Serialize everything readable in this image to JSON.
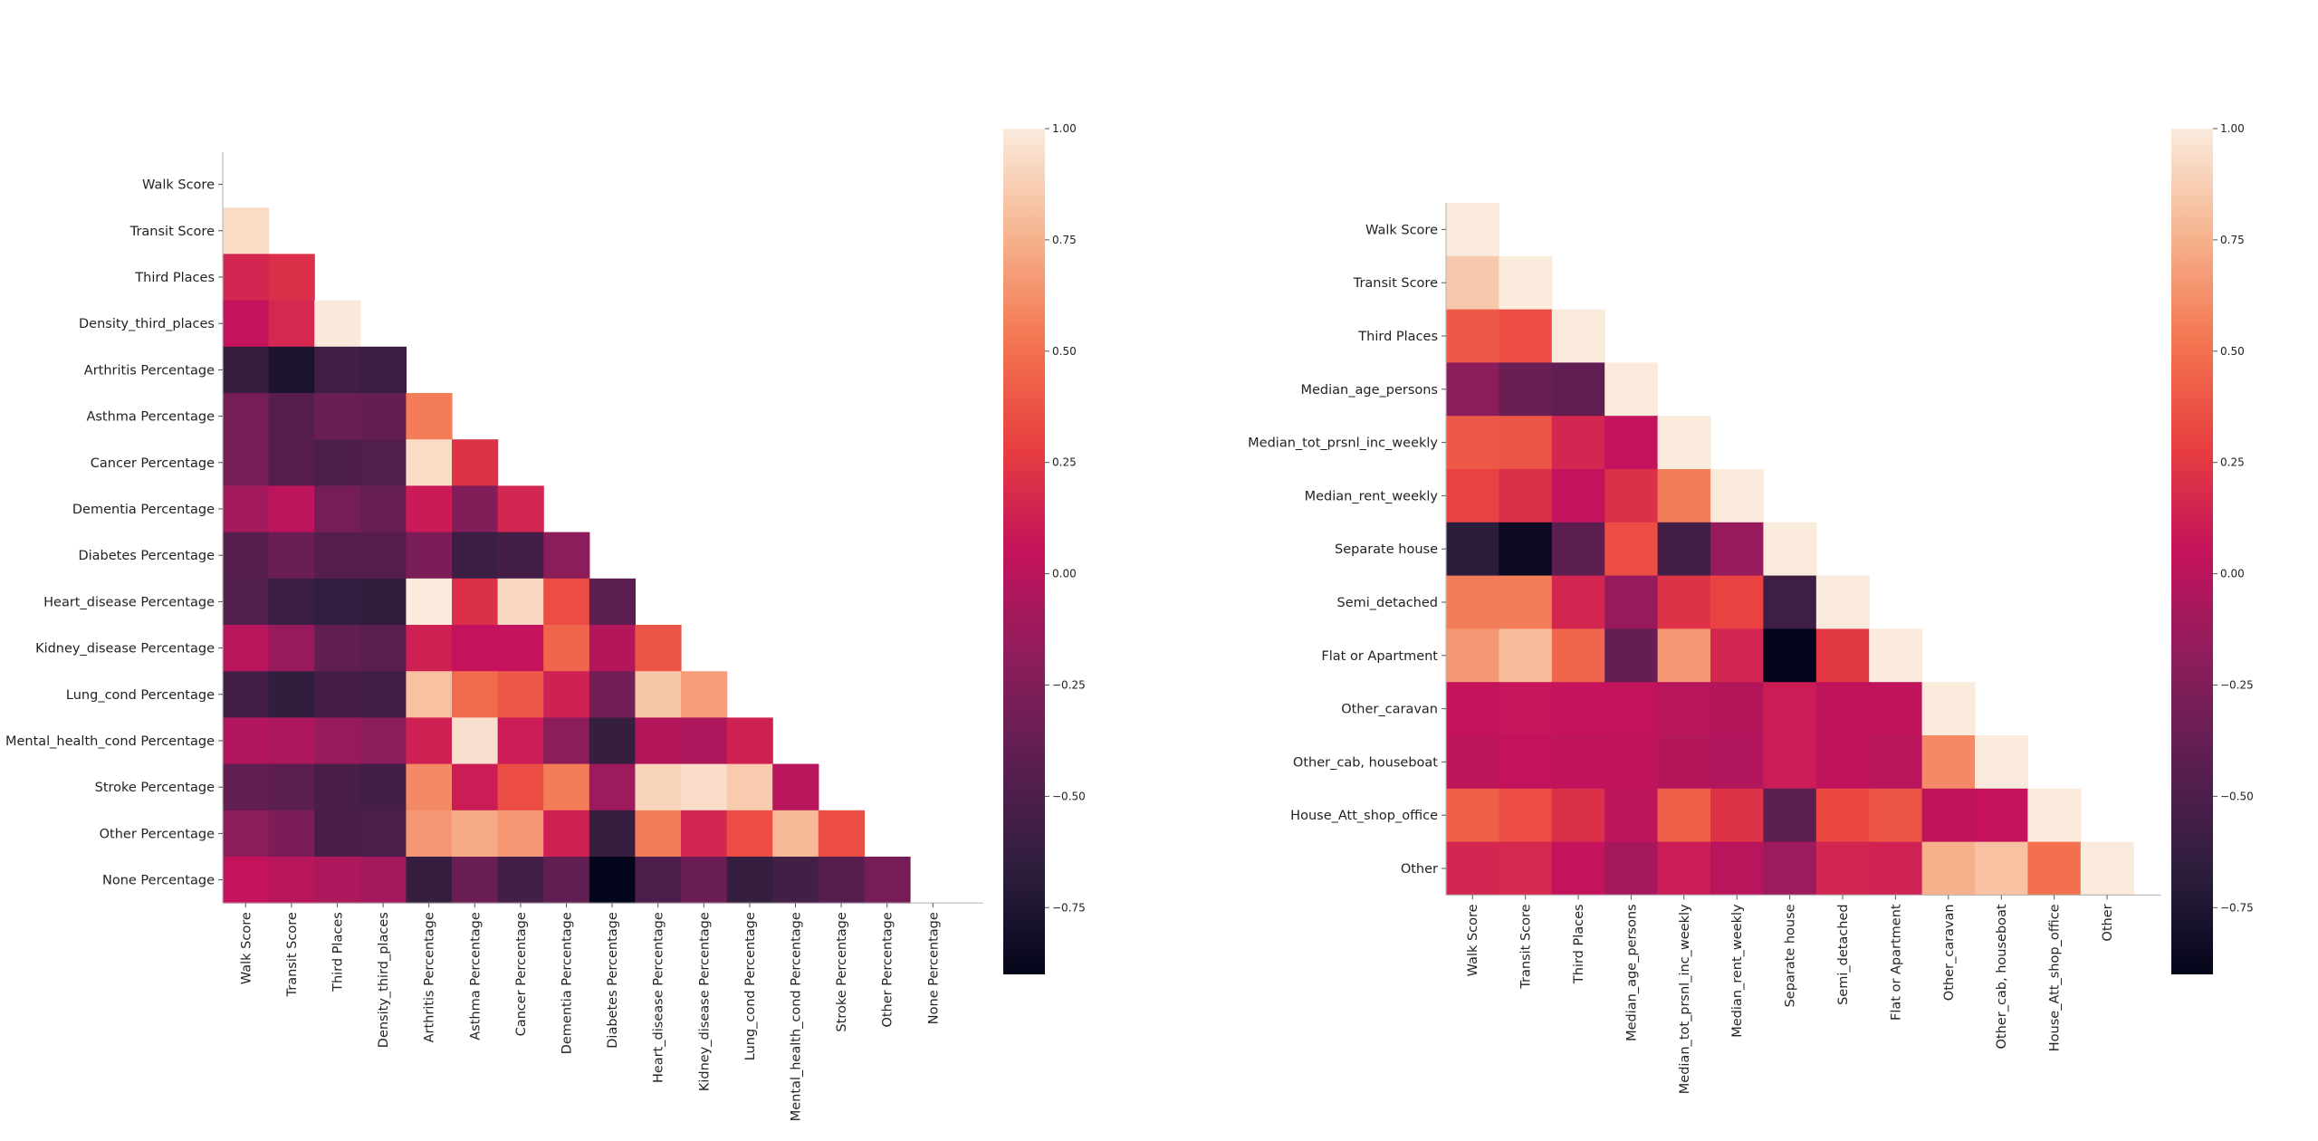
{
  "chart_data": [
    {
      "type": "heatmap",
      "labels": [
        "Walk Score",
        "Transit Score",
        "Third Places",
        "Density_third_places",
        "Arthritis Percentage",
        "Asthma Percentage",
        "Cancer Percentage",
        "Dementia Percentage",
        "Diabetes Percentage",
        "Heart_disease Percentage",
        "Kidney_disease Percentage",
        "Lung_cond Percentage",
        "Mental_health_cond Percentage",
        "Stroke Percentage",
        "Other Percentage",
        "None Percentage"
      ],
      "mask": "upper-triangle",
      "values": [
        [],
        [
          0.93
        ],
        [
          0.15,
          0.2
        ],
        [
          0.05,
          0.16,
          0.99
        ],
        [
          -0.62,
          -0.76,
          -0.57,
          -0.6
        ],
        [
          -0.3,
          -0.45,
          -0.35,
          -0.38,
          0.55
        ],
        [
          -0.3,
          -0.45,
          -0.5,
          -0.48,
          0.93,
          0.22
        ],
        [
          -0.1,
          0.02,
          -0.3,
          -0.37,
          0.09,
          -0.25,
          0.15
        ],
        [
          -0.45,
          -0.35,
          -0.45,
          -0.45,
          -0.28,
          -0.6,
          -0.55,
          -0.2
        ],
        [
          -0.48,
          -0.6,
          -0.64,
          -0.65,
          1.0,
          0.2,
          0.92,
          0.35,
          -0.42
        ],
        [
          0.0,
          -0.15,
          -0.4,
          -0.44,
          0.12,
          0.05,
          0.05,
          0.45,
          -0.02,
          0.38
        ],
        [
          -0.55,
          -0.65,
          -0.54,
          -0.55,
          0.82,
          0.48,
          0.4,
          0.12,
          -0.32,
          0.84,
          0.68
        ],
        [
          -0.03,
          -0.05,
          -0.15,
          -0.2,
          0.12,
          0.95,
          0.1,
          -0.2,
          -0.62,
          -0.02,
          -0.05,
          0.12
        ],
        [
          -0.4,
          -0.42,
          -0.52,
          -0.55,
          0.6,
          0.1,
          0.35,
          0.55,
          -0.12,
          0.9,
          0.94,
          0.86,
          0.0
        ],
        [
          -0.2,
          -0.28,
          -0.52,
          -0.5,
          0.65,
          0.72,
          0.65,
          0.12,
          -0.62,
          0.55,
          0.15,
          0.35,
          0.78,
          0.35
        ],
        [
          0.05,
          0.0,
          -0.05,
          -0.1,
          -0.62,
          -0.35,
          -0.55,
          -0.4,
          -0.95,
          -0.5,
          -0.35,
          -0.62,
          -0.55,
          -0.45,
          -0.3
        ]
      ],
      "colorbar": {
        "range": [
          -0.9,
          1.0
        ],
        "ticks": [
          "1.00",
          "0.75",
          "0.50",
          "0.25",
          "0.00",
          "−0.25",
          "−0.50",
          "−0.75"
        ],
        "tick_values": [
          1.0,
          0.75,
          0.5,
          0.25,
          0.0,
          -0.25,
          -0.5,
          -0.75
        ]
      },
      "colormap": "rocket"
    },
    {
      "type": "heatmap",
      "labels": [
        "Walk Score",
        "Transit Score",
        "Third Places",
        "Median_age_persons",
        "Median_tot_prsnl_inc_weekly",
        "Median_rent_weekly",
        "Separate house",
        "Semi_detached",
        "Flat or Apartment",
        "Other_caravan",
        "Other_cab, houseboat",
        "House_Att_shop_office",
        "Other"
      ],
      "mask": "upper-triangle-diagonal-shown",
      "values": [
        [
          1.0
        ],
        [
          0.85,
          1.0
        ],
        [
          0.4,
          0.35,
          1.0
        ],
        [
          -0.2,
          -0.35,
          -0.4,
          1.0
        ],
        [
          0.4,
          0.38,
          0.15,
          0.05,
          1.0
        ],
        [
          0.3,
          0.2,
          0.05,
          0.2,
          0.55,
          1.0
        ],
        [
          -0.68,
          -0.85,
          -0.42,
          0.35,
          -0.55,
          -0.15,
          1.0
        ],
        [
          0.55,
          0.55,
          0.15,
          -0.15,
          0.22,
          0.3,
          -0.58,
          1.0
        ],
        [
          0.65,
          0.8,
          0.45,
          -0.38,
          0.65,
          0.15,
          -0.95,
          0.25,
          1.0
        ],
        [
          0.05,
          0.06,
          0.05,
          0.04,
          0.0,
          -0.02,
          0.1,
          0.03,
          0.03,
          1.0
        ],
        [
          0.02,
          0.04,
          0.03,
          0.03,
          -0.02,
          -0.03,
          0.1,
          0.03,
          0.0,
          0.6,
          1.0
        ],
        [
          0.42,
          0.35,
          0.2,
          0.02,
          0.42,
          0.22,
          -0.42,
          0.32,
          0.38,
          0.03,
          0.05,
          1.0
        ],
        [
          0.15,
          0.16,
          0.05,
          -0.08,
          0.1,
          0.0,
          -0.12,
          0.15,
          0.13,
          0.75,
          0.82,
          0.5,
          1.0
        ]
      ],
      "colorbar": {
        "range": [
          -0.9,
          1.0
        ],
        "ticks": [
          "1.00",
          "0.75",
          "0.50",
          "0.25",
          "0.00",
          "−0.25",
          "−0.50",
          "−0.75"
        ],
        "tick_values": [
          1.0,
          0.75,
          0.5,
          0.25,
          0.0,
          -0.25,
          -0.5,
          -0.75
        ]
      },
      "colormap": "rocket"
    }
  ]
}
